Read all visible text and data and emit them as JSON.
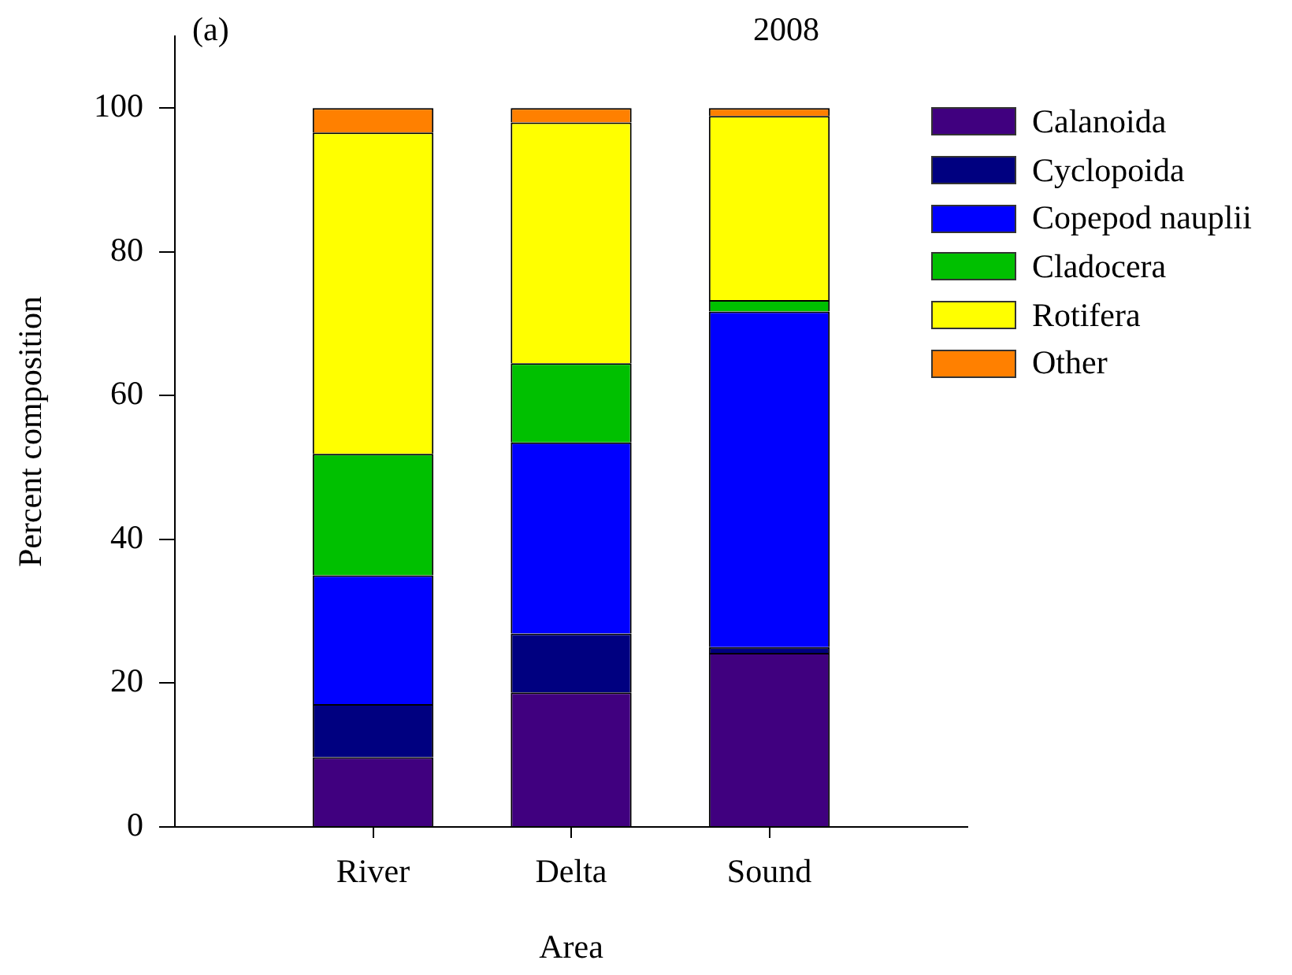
{
  "chart_data": {
    "type": "bar",
    "title": "2008",
    "annotations": [
      "(a)"
    ],
    "xlabel": "Area",
    "ylabel": "Percent composition",
    "categories": [
      "River",
      "Delta",
      "Sound"
    ],
    "stacked": true,
    "series": [
      {
        "name": "Calanoida",
        "color": "#40007f",
        "values": [
          9.7,
          18.7,
          24.2
        ]
      },
      {
        "name": "Cyclopoida",
        "color": "#000080",
        "values": [
          7.4,
          8.2,
          0.8
        ]
      },
      {
        "name": "Copepod nauplii",
        "color": "#0000ff",
        "values": [
          17.9,
          26.6,
          46.7
        ]
      },
      {
        "name": "Cladocera",
        "color": "#00c000",
        "values": [
          16.9,
          11.0,
          1.6
        ]
      },
      {
        "name": "Rotifera",
        "color": "#ffff00",
        "values": [
          44.7,
          33.5,
          25.6
        ]
      },
      {
        "name": "Other",
        "color": "#ff8000",
        "values": [
          3.4,
          2.0,
          1.1
        ]
      }
    ],
    "ylim": [
      0,
      110
    ],
    "yticks": [
      0,
      20,
      40,
      60,
      80,
      100
    ],
    "legend": "top right"
  }
}
